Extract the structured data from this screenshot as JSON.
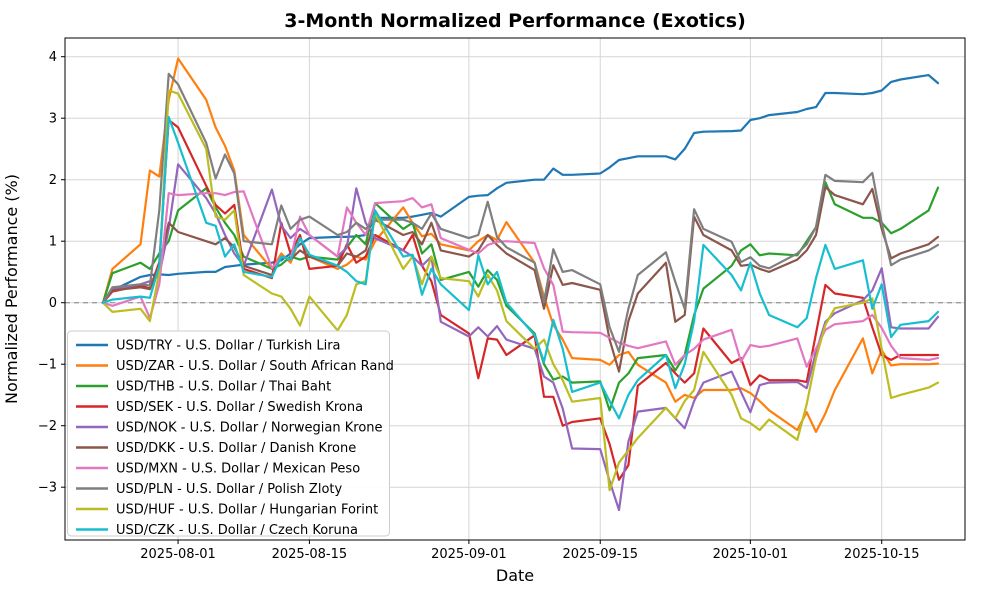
{
  "chart_data": {
    "type": "line",
    "title": "3-Month Normalized Performance (Exotics)",
    "xlabel": "Date",
    "ylabel": "Normalized Performance (%)",
    "x_tick_labels": [
      "2025-08-01",
      "2025-08-15",
      "2025-09-01",
      "2025-09-15",
      "2025-10-01",
      "2025-10-15"
    ],
    "y_tick_labels": [
      "−3",
      "−2",
      "−1",
      "0",
      "1",
      "2",
      "3",
      "4"
    ],
    "y_ticks": [
      -3,
      -2,
      -1,
      0,
      1,
      2,
      3,
      4
    ],
    "ylim": [
      -3.86,
      4.3
    ],
    "x_range": [
      "2025-07-24",
      "2025-10-21"
    ],
    "grid": true,
    "zero_line": true,
    "legend_position": "lower left",
    "dates": [
      "2025-07-24",
      "2025-07-25",
      "2025-07-28",
      "2025-07-29",
      "2025-07-30",
      "2025-07-31",
      "2025-08-01",
      "2025-08-04",
      "2025-08-05",
      "2025-08-06",
      "2025-08-07",
      "2025-08-08",
      "2025-08-11",
      "2025-08-12",
      "2025-08-13",
      "2025-08-14",
      "2025-08-15",
      "2025-08-18",
      "2025-08-19",
      "2025-08-20",
      "2025-08-21",
      "2025-08-22",
      "2025-08-25",
      "2025-08-26",
      "2025-08-27",
      "2025-08-28",
      "2025-08-29",
      "2025-09-01",
      "2025-09-02",
      "2025-09-03",
      "2025-09-04",
      "2025-09-05",
      "2025-09-08",
      "2025-09-09",
      "2025-09-10",
      "2025-09-11",
      "2025-09-12",
      "2025-09-15",
      "2025-09-16",
      "2025-09-17",
      "2025-09-18",
      "2025-09-19",
      "2025-09-22",
      "2025-09-23",
      "2025-09-24",
      "2025-09-25",
      "2025-09-26",
      "2025-09-29",
      "2025-09-30",
      "2025-10-01",
      "2025-10-02",
      "2025-10-03",
      "2025-10-06",
      "2025-10-07",
      "2025-10-08",
      "2025-10-09",
      "2025-10-10",
      "2025-10-13",
      "2025-10-14",
      "2025-10-15",
      "2025-10-16",
      "2025-10-17",
      "2025-10-20",
      "2025-10-21"
    ],
    "series": [
      {
        "name": "USD/TRY - U.S. Dollar / Turkish Lira",
        "color": "#1f77b4",
        "values": [
          0.0,
          0.2,
          0.42,
          0.45,
          0.46,
          0.45,
          0.47,
          0.5,
          0.5,
          0.58,
          0.6,
          0.62,
          0.65,
          0.69,
          0.8,
          0.95,
          1.05,
          1.07,
          1.07,
          1.08,
          1.1,
          1.38,
          1.38,
          1.4,
          1.43,
          1.46,
          1.4,
          1.72,
          1.74,
          1.75,
          1.86,
          1.95,
          2.0,
          2.0,
          2.18,
          2.08,
          2.08,
          2.1,
          2.2,
          2.32,
          2.35,
          2.38,
          2.38,
          2.33,
          2.5,
          2.76,
          2.78,
          2.79,
          2.8,
          2.97,
          3.0,
          3.05,
          3.1,
          3.15,
          3.18,
          3.41,
          3.41,
          3.39,
          3.41,
          3.45,
          3.59,
          3.63,
          3.7,
          3.57
        ]
      },
      {
        "name": "USD/ZAR - U.S. Dollar / South African Rand",
        "color": "#ff7f0e",
        "values": [
          0.0,
          0.55,
          0.95,
          2.15,
          2.05,
          3.3,
          3.97,
          3.3,
          2.85,
          2.55,
          2.15,
          1.1,
          0.55,
          0.8,
          0.65,
          1.05,
          0.75,
          0.55,
          0.62,
          0.75,
          0.7,
          1.0,
          1.55,
          1.3,
          1.08,
          1.12,
          0.95,
          0.85,
          1.0,
          1.1,
          1.02,
          1.31,
          0.65,
          0.1,
          -0.36,
          -0.6,
          -0.9,
          -0.93,
          -1.01,
          -0.85,
          -0.8,
          -1.01,
          -1.3,
          -1.61,
          -1.5,
          -1.55,
          -1.42,
          -1.42,
          -1.39,
          -1.47,
          -1.6,
          -1.75,
          -2.07,
          -1.78,
          -2.1,
          -1.8,
          -1.42,
          -0.58,
          -1.15,
          -0.77,
          -1.02,
          -1.0,
          -1.0,
          -0.99
        ]
      },
      {
        "name": "USD/THB - U.S. Dollar / Thai Baht",
        "color": "#2ca02c",
        "values": [
          0.0,
          0.48,
          0.65,
          0.55,
          0.8,
          1.0,
          1.5,
          1.86,
          1.55,
          1.3,
          1.1,
          0.75,
          0.55,
          0.62,
          0.75,
          0.7,
          0.75,
          0.7,
          0.9,
          1.1,
          0.95,
          1.62,
          1.2,
          1.3,
          0.8,
          0.95,
          0.37,
          0.5,
          0.26,
          0.53,
          0.37,
          -0.05,
          -0.5,
          -1.0,
          -1.25,
          -1.2,
          -1.3,
          -1.28,
          -1.75,
          -1.3,
          -1.15,
          -0.9,
          -0.85,
          -1.1,
          -0.85,
          -0.2,
          0.23,
          0.6,
          0.85,
          0.95,
          0.77,
          0.8,
          0.77,
          1.0,
          1.23,
          1.96,
          1.6,
          1.38,
          1.38,
          1.3,
          1.13,
          1.2,
          1.5,
          1.87
        ]
      },
      {
        "name": "USD/SEK - U.S. Dollar / Swedish Krona",
        "color": "#d62728",
        "values": [
          0.0,
          0.18,
          0.28,
          0.23,
          0.66,
          2.97,
          2.85,
          1.9,
          1.59,
          1.45,
          1.59,
          0.55,
          0.4,
          1.3,
          0.8,
          1.1,
          0.55,
          0.6,
          0.95,
          0.65,
          0.75,
          1.1,
          0.85,
          1.1,
          0.6,
          0.35,
          -0.2,
          -0.5,
          -1.23,
          -0.58,
          -0.6,
          -0.85,
          -0.53,
          -1.53,
          -1.53,
          -2.0,
          -1.94,
          -1.88,
          -2.3,
          -2.88,
          -2.64,
          -1.35,
          -0.98,
          -1.15,
          -1.3,
          -1.15,
          -0.42,
          -0.98,
          -0.9,
          -1.34,
          -1.18,
          -1.26,
          -1.26,
          -1.29,
          -0.5,
          0.29,
          0.15,
          0.08,
          -0.4,
          -0.85,
          -0.93,
          -0.85,
          -0.85,
          -0.85
        ]
      },
      {
        "name": "USD/NOK - U.S. Dollar / Norwegian Krone",
        "color": "#9467bd",
        "values": [
          0.0,
          0.22,
          0.3,
          0.35,
          0.45,
          1.2,
          2.25,
          1.7,
          1.45,
          1.1,
          0.8,
          0.6,
          1.84,
          1.25,
          1.05,
          1.2,
          1.1,
          0.75,
          0.9,
          1.86,
          1.3,
          1.05,
          0.85,
          0.75,
          0.6,
          0.75,
          -0.31,
          -0.55,
          -0.4,
          -0.55,
          -0.38,
          -0.6,
          -0.75,
          -1.2,
          -1.3,
          -1.72,
          -2.37,
          -2.38,
          -2.9,
          -3.37,
          -2.26,
          -1.77,
          -1.71,
          -1.88,
          -2.04,
          -1.6,
          -1.3,
          -1.12,
          -1.45,
          -1.78,
          -1.34,
          -1.3,
          -1.29,
          -1.39,
          -0.8,
          -0.31,
          -0.17,
          0.04,
          0.2,
          0.56,
          -0.4,
          -0.42,
          -0.42,
          -0.23
        ]
      },
      {
        "name": "USD/DKK - U.S. Dollar / Danish Krone",
        "color": "#8c564b",
        "values": [
          0.0,
          0.2,
          0.25,
          0.22,
          0.6,
          1.3,
          1.15,
          1.0,
          0.95,
          1.05,
          0.9,
          0.6,
          0.45,
          0.75,
          0.7,
          0.85,
          0.75,
          0.6,
          0.8,
          0.75,
          0.85,
          1.35,
          1.1,
          1.15,
          0.95,
          1.3,
          0.85,
          0.75,
          0.85,
          1.1,
          0.94,
          0.8,
          0.53,
          -0.1,
          0.61,
          0.29,
          0.32,
          0.21,
          -0.6,
          -1.12,
          -0.3,
          0.15,
          0.65,
          -0.31,
          -0.2,
          1.4,
          1.1,
          0.85,
          0.6,
          0.62,
          0.55,
          0.5,
          0.7,
          0.85,
          1.1,
          1.88,
          1.75,
          1.6,
          1.85,
          1.2,
          0.72,
          0.8,
          0.95,
          1.07
        ]
      },
      {
        "name": "USD/MXN - U.S. Dollar / Mexican Peso",
        "color": "#e377c2",
        "values": [
          0.0,
          -0.05,
          0.1,
          -0.25,
          0.3,
          1.78,
          1.75,
          1.78,
          1.78,
          1.75,
          1.8,
          1.81,
          0.56,
          0.75,
          0.7,
          1.4,
          1.1,
          0.75,
          1.55,
          1.3,
          1.1,
          1.62,
          1.65,
          1.7,
          1.55,
          1.6,
          1.05,
          0.86,
          0.8,
          0.94,
          0.99,
          1.0,
          0.97,
          0.56,
          0.29,
          -0.47,
          -0.48,
          -0.49,
          -0.57,
          -0.65,
          -0.7,
          -0.74,
          -0.63,
          -1.01,
          -0.85,
          -0.75,
          -0.6,
          -0.44,
          -0.96,
          -0.69,
          -0.72,
          -0.7,
          -0.58,
          -1.04,
          -0.75,
          -0.44,
          -0.35,
          -0.3,
          -0.2,
          -0.41,
          -0.7,
          -0.9,
          -0.93,
          -0.9
        ]
      },
      {
        "name": "USD/PLN - U.S. Dollar / Polish Zloty",
        "color": "#7f7f7f",
        "values": [
          0.0,
          0.25,
          0.3,
          0.28,
          1.5,
          3.72,
          3.55,
          2.6,
          2.02,
          2.41,
          2.1,
          1.0,
          0.95,
          1.58,
          1.2,
          1.35,
          1.4,
          1.1,
          1.15,
          1.3,
          1.2,
          1.35,
          1.35,
          1.3,
          1.2,
          1.45,
          1.2,
          1.05,
          1.1,
          1.64,
          1.07,
          0.9,
          0.65,
          0.01,
          0.87,
          0.5,
          0.53,
          0.3,
          -0.4,
          -0.8,
          -0.1,
          0.45,
          0.82,
          0.34,
          -0.1,
          1.52,
          1.2,
          0.99,
          0.66,
          0.74,
          0.6,
          0.56,
          0.8,
          0.95,
          1.23,
          2.08,
          1.98,
          1.96,
          2.11,
          1.3,
          0.61,
          0.7,
          0.85,
          0.94
        ]
      },
      {
        "name": "USD/HUF - U.S. Dollar / Hungarian Forint",
        "color": "#bcbd22",
        "values": [
          0.0,
          -0.15,
          -0.1,
          -0.3,
          0.5,
          3.45,
          3.4,
          2.5,
          1.4,
          1.35,
          1.5,
          0.45,
          0.15,
          0.1,
          -0.1,
          -0.37,
          0.1,
          -0.45,
          -0.2,
          0.3,
          0.35,
          1.45,
          0.55,
          0.75,
          0.3,
          0.75,
          0.4,
          0.35,
          0.1,
          0.45,
          0.2,
          -0.3,
          -0.75,
          -0.6,
          -1.0,
          -1.26,
          -1.61,
          -1.55,
          -3.05,
          -2.6,
          -2.4,
          -2.2,
          -1.71,
          -1.88,
          -1.6,
          -1.42,
          -0.8,
          -1.5,
          -1.88,
          -1.96,
          -2.07,
          -1.9,
          -2.23,
          -1.65,
          -0.9,
          -0.36,
          -0.09,
          0.0,
          0.07,
          -0.75,
          -1.55,
          -1.5,
          -1.38,
          -1.3
        ]
      },
      {
        "name": "USD/CZK - U.S. Dollar / Czech Koruna",
        "color": "#17becf",
        "values": [
          0.0,
          0.05,
          0.1,
          0.08,
          0.6,
          3.02,
          2.6,
          1.3,
          1.25,
          0.75,
          0.95,
          0.5,
          0.42,
          0.75,
          0.7,
          1.05,
          0.78,
          0.6,
          0.5,
          0.35,
          0.3,
          1.5,
          0.75,
          0.78,
          0.13,
          0.55,
          0.3,
          -0.12,
          0.77,
          0.3,
          0.5,
          0.0,
          -0.53,
          -0.96,
          -0.28,
          -0.75,
          -1.45,
          -1.3,
          -1.6,
          -1.88,
          -1.5,
          -1.26,
          -0.85,
          -1.39,
          -1.0,
          -0.3,
          0.94,
          0.45,
          0.2,
          0.65,
          0.15,
          -0.2,
          -0.4,
          -0.25,
          0.4,
          0.94,
          0.55,
          0.69,
          -0.1,
          0.3,
          -0.56,
          -0.36,
          -0.3,
          -0.15
        ]
      }
    ]
  }
}
